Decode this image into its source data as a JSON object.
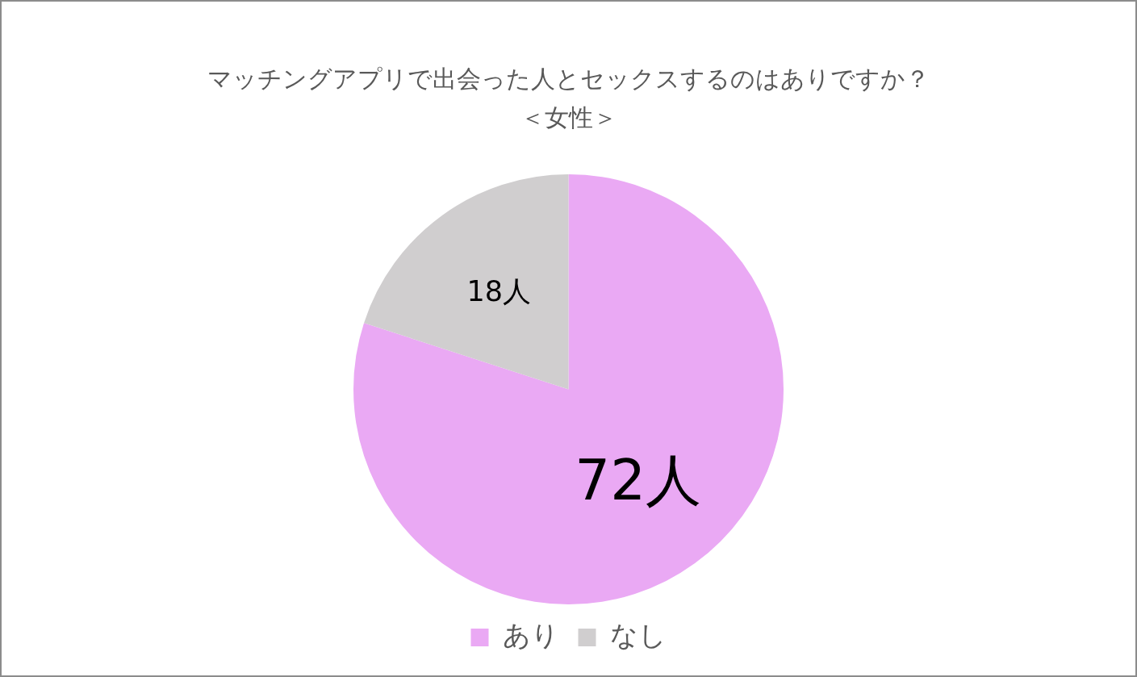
{
  "chart_data": {
    "type": "pie",
    "title": "マッチングアプリで出会った人とセックスするのはありですか？",
    "subtitle": "＜女性＞",
    "categories": [
      "あり",
      "なし"
    ],
    "values": [
      72,
      18
    ],
    "colors": [
      "#eaa9f4",
      "#d0cecf"
    ],
    "value_labels": [
      "72人",
      "18人"
    ],
    "legend": "bottom"
  }
}
